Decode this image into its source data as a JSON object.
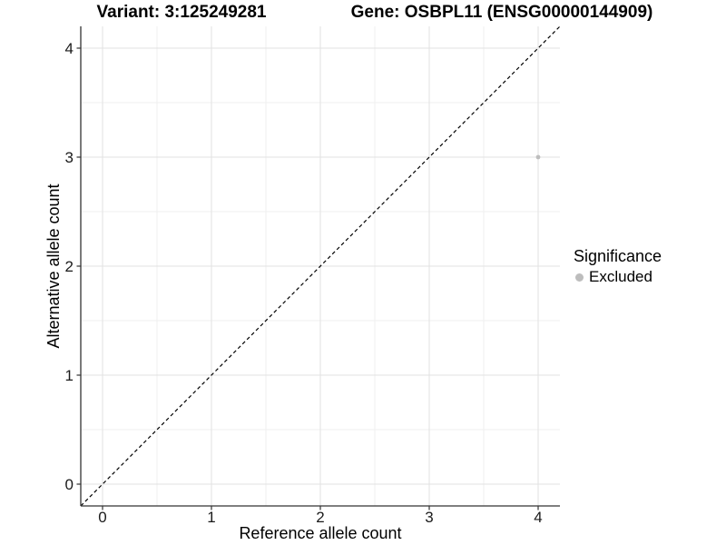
{
  "chart_data": {
    "type": "scatter",
    "title_left": "Variant: 3:125249281",
    "title_right": "Gene: OSBPL11 (ENSG00000144909)",
    "xlabel": "Reference allele count",
    "ylabel": "Alternative allele count",
    "xlim": [
      -0.2,
      4.2
    ],
    "ylim": [
      -0.2,
      4.2
    ],
    "xticks": [
      0,
      1,
      2,
      3,
      4
    ],
    "yticks": [
      0,
      1,
      2,
      3,
      4
    ],
    "minor_ticks_x": [
      0.5,
      1.5,
      2.5,
      3.5
    ],
    "minor_ticks_y": [
      0.5,
      1.5,
      2.5,
      3.5
    ],
    "grid": true,
    "series": [
      {
        "name": "Excluded",
        "color": "#bdbdbd",
        "points": [
          {
            "x": 4,
            "y": 3
          }
        ]
      }
    ],
    "reference_line": {
      "type": "identity",
      "style": "dashed",
      "from": [
        -0.2,
        -0.2
      ],
      "to": [
        4.2,
        4.2
      ],
      "color": "#000000"
    },
    "legend": {
      "title": "Significance",
      "position": "right",
      "entries": [
        {
          "label": "Excluded",
          "color": "#bdbdbd"
        }
      ]
    },
    "colors": {
      "grid_major": "#e2e2e2",
      "grid_minor": "#efefef",
      "axis": "#333333",
      "tick_text": "#1a1a1a",
      "point": "#bdbdbd"
    }
  }
}
